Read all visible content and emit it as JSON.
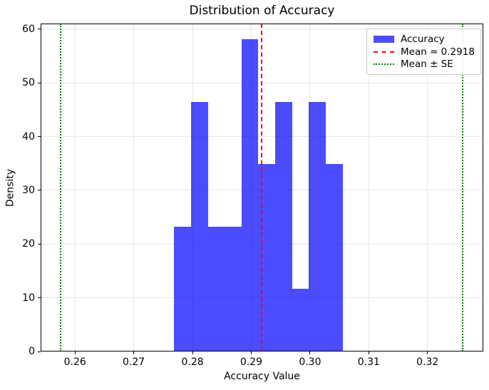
{
  "figure": {
    "title": "Distribution of Accuracy",
    "xlabel": "Accuracy Value",
    "ylabel": "Density"
  },
  "legend": {
    "position": "upper right",
    "items": [
      {
        "label": "Accuracy",
        "sample": "patch",
        "color": "#4d4dff"
      },
      {
        "label": "Mean = 0.2918",
        "sample": "dashed-line",
        "color": "#ff0000"
      },
      {
        "label": "Mean ± SE",
        "sample": "dotted-line",
        "color": "#008000"
      }
    ]
  },
  "chart_data": {
    "type": "bar",
    "subtype": "density-histogram",
    "title": "Distribution of Accuracy",
    "xlabel": "Accuracy Value",
    "ylabel": "Density",
    "bin_edges": [
      0.27688,
      0.27975,
      0.28261,
      0.28548,
      0.28835,
      0.29121,
      0.29408,
      0.29694,
      0.29981,
      0.30268,
      0.30554
    ],
    "densities": [
      23.26,
      46.51,
      23.26,
      23.26,
      58.14,
      34.88,
      46.51,
      11.63,
      46.51,
      34.88
    ],
    "counts": [
      2,
      4,
      2,
      2,
      5,
      3,
      4,
      1,
      4,
      3
    ],
    "mean": 0.2918,
    "se": 0.0342,
    "vlines": [
      {
        "x": 0.2918,
        "style": "dashed",
        "color": "#ff0000",
        "name": "mean-line"
      },
      {
        "x": 0.2576,
        "style": "dotted",
        "color": "#008000",
        "name": "mean-minus-se-line"
      },
      {
        "x": 0.326,
        "style": "dotted",
        "color": "#008000",
        "name": "mean-plus-se-line"
      }
    ],
    "xlim": [
      0.25415,
      0.32949
    ],
    "ylim": [
      0,
      61.05
    ],
    "xticks": [
      0.26,
      0.27,
      0.28,
      0.29,
      0.3,
      0.31,
      0.32
    ],
    "xtick_labels": [
      "0.26",
      "0.27",
      "0.28",
      "0.29",
      "0.30",
      "0.31",
      "0.32"
    ],
    "yticks": [
      0,
      10,
      20,
      30,
      40,
      50,
      60
    ],
    "ytick_labels": [
      "0",
      "10",
      "20",
      "30",
      "40",
      "50",
      "60"
    ],
    "grid": true,
    "legend_position": "upper right",
    "colors": {
      "bar": "rgba(0,0,255,0.7)",
      "mean_line": "#ff0000",
      "se_line": "#008000",
      "grid": "#e7e7e7",
      "frame": "#000000",
      "text": "#000000",
      "background": "#ffffff"
    }
  }
}
